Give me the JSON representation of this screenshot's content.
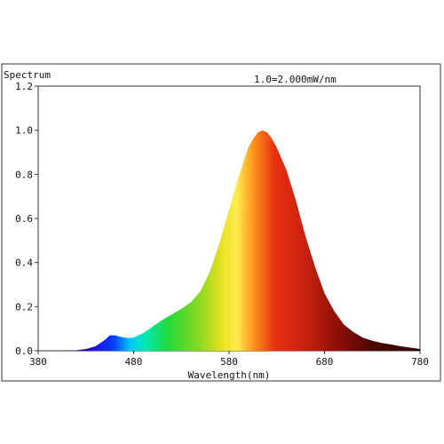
{
  "chart_data": {
    "type": "area",
    "title": "",
    "ylabel": "Spectrum",
    "xlabel": "Wavelength(nm)",
    "annotation": "1.0=2.000mW/nm",
    "xlim": [
      380,
      780
    ],
    "ylim": [
      0,
      1.2
    ],
    "x_ticks": [
      "380",
      "480",
      "580",
      "680",
      "780"
    ],
    "y_ticks": [
      "0.0",
      "0.2",
      "0.4",
      "0.6",
      "0.8",
      "1.0",
      "1.2"
    ],
    "grid": false,
    "fill": "visible-spectrum-gradient",
    "series": [
      {
        "x": [
          380,
          400,
          420,
          430,
          440,
          450,
          455,
          460,
          465,
          470,
          475,
          480,
          490,
          500,
          510,
          520,
          530,
          540,
          550,
          560,
          570,
          580,
          590,
          600,
          605,
          610,
          615,
          620,
          625,
          630,
          640,
          650,
          660,
          670,
          680,
          690,
          700,
          710,
          720,
          730,
          740,
          750,
          760,
          770,
          780
        ],
        "values": [
          0.0,
          0.0,
          0.002,
          0.008,
          0.02,
          0.05,
          0.07,
          0.07,
          0.065,
          0.06,
          0.058,
          0.06,
          0.08,
          0.11,
          0.14,
          0.165,
          0.19,
          0.22,
          0.27,
          0.36,
          0.49,
          0.64,
          0.79,
          0.92,
          0.96,
          0.99,
          1.0,
          0.99,
          0.96,
          0.92,
          0.82,
          0.68,
          0.52,
          0.38,
          0.26,
          0.18,
          0.12,
          0.085,
          0.06,
          0.045,
          0.035,
          0.028,
          0.02,
          0.014,
          0.008
        ]
      }
    ]
  }
}
